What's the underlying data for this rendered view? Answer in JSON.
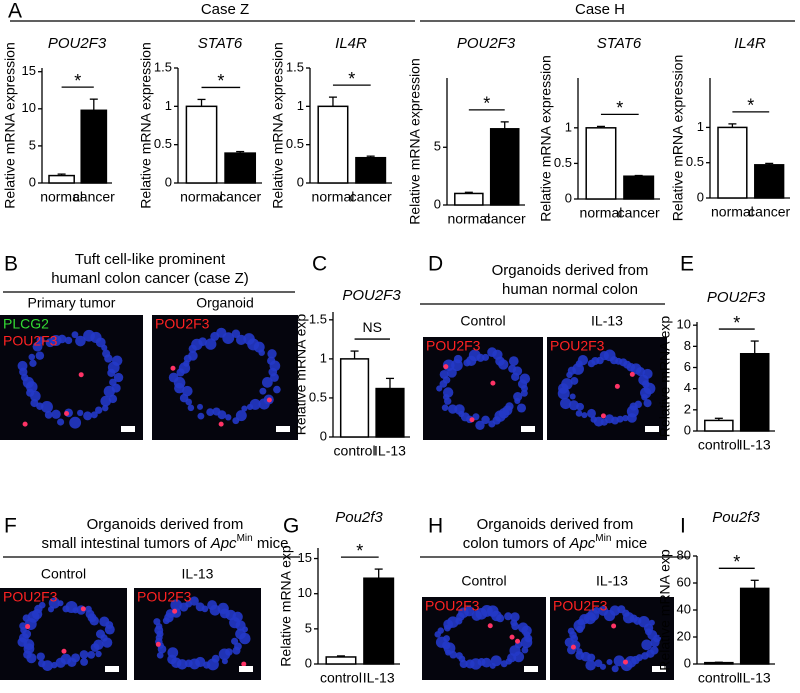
{
  "figure": {
    "panel_letters": [
      "A",
      "B",
      "C",
      "D",
      "E",
      "F",
      "G",
      "H",
      "I"
    ],
    "case_headers": [
      "Case Z",
      "Case H"
    ],
    "panel_b": {
      "title": [
        "Tuft cell-like prominent",
        "humanl colon cancer (case Z)"
      ],
      "images": [
        {
          "label": "Primary tumor",
          "stains": [
            {
              "name": "PLCG2",
              "color": "#33dd33"
            },
            {
              "name": "POU2F3",
              "color": "#ff2222"
            }
          ]
        },
        {
          "label": "Organoid",
          "stains": [
            {
              "name": "POU2F3",
              "color": "#ff2222"
            }
          ]
        }
      ]
    },
    "panel_d": {
      "title": [
        "Organoids derived from",
        "human normal colon"
      ],
      "images": [
        {
          "label": "Control",
          "stains": [
            {
              "name": "POU2F3",
              "color": "#ff2222"
            }
          ]
        },
        {
          "label": "IL-13",
          "stains": [
            {
              "name": "POU2F3",
              "color": "#ff2222"
            }
          ]
        }
      ]
    },
    "panel_f": {
      "title": [
        "Organoids derived from",
        [
          "small intestinal tumors of ",
          "Apc",
          "Min",
          " mice"
        ]
      ],
      "images": [
        {
          "label": "Control",
          "stains": [
            {
              "name": "POU2F3",
              "color": "#ff2222"
            }
          ]
        },
        {
          "label": "IL-13",
          "stains": [
            {
              "name": "POU2F3",
              "color": "#ff2222"
            }
          ]
        }
      ]
    },
    "panel_h": {
      "title": [
        "Organoids derived from",
        [
          "colon tumors of ",
          "Apc",
          "Min",
          " mice"
        ]
      ],
      "images": [
        {
          "label": "Control",
          "stains": [
            {
              "name": "POU2F3",
              "color": "#ff2222"
            }
          ]
        },
        {
          "label": "IL-13",
          "stains": [
            {
              "name": "POU2F3",
              "color": "#ff2222"
            }
          ]
        }
      ]
    }
  },
  "chart_data": [
    {
      "type": "bar",
      "title": "POU2F3",
      "y_label": "Relative mRNA expression",
      "categories": [
        "normal",
        "cancer"
      ],
      "values": [
        1.0,
        9.8
      ],
      "errors": [
        0.2,
        1.5
      ],
      "colors": [
        "#ffffff",
        "#000000"
      ],
      "ylim": [
        0,
        15.5
      ],
      "yticks": [
        0,
        5,
        10,
        15
      ],
      "annotation": "*"
    },
    {
      "type": "bar",
      "title": "STAT6",
      "y_label": "Relative mRNA expression",
      "categories": [
        "normal",
        "cancer"
      ],
      "values": [
        1.0,
        0.39
      ],
      "errors": [
        0.09,
        0.02
      ],
      "colors": [
        "#ffffff",
        "#000000"
      ],
      "ylim": [
        0,
        1.5
      ],
      "yticks": [
        0,
        0.5,
        1,
        1.5
      ],
      "annotation": "*"
    },
    {
      "type": "bar",
      "title": "IL4R",
      "y_label": "Relative mRNA expression",
      "categories": [
        "normal",
        "cancer"
      ],
      "values": [
        1.0,
        0.33
      ],
      "errors": [
        0.12,
        0.02
      ],
      "colors": [
        "#ffffff",
        "#000000"
      ],
      "ylim": [
        0,
        1.5
      ],
      "yticks": [
        0,
        0.5,
        1,
        1.5
      ],
      "annotation": "*"
    },
    {
      "type": "bar",
      "title": "POU2F3",
      "y_label": "Relative mRNA expression",
      "categories": [
        "normal",
        "cancer"
      ],
      "values": [
        1.0,
        6.6
      ],
      "errors": [
        0.1,
        0.6
      ],
      "colors": [
        "#ffffff",
        "#000000"
      ],
      "ylim": [
        0,
        11
      ],
      "yticks": [
        0,
        5
      ],
      "annotation": "*"
    },
    {
      "type": "bar",
      "title": "STAT6",
      "y_label": "Relative mRNA expression",
      "categories": [
        "normal",
        "cancer"
      ],
      "values": [
        1.0,
        0.32
      ],
      "errors": [
        0.02,
        0.01
      ],
      "colors": [
        "#ffffff",
        "#000000"
      ],
      "ylim": [
        0,
        1.7
      ],
      "yticks": [
        0,
        0.5,
        1
      ],
      "annotation": "*"
    },
    {
      "type": "bar",
      "title": "IL4R",
      "y_label": "Relative mRNA expression",
      "categories": [
        "normal",
        "cancer"
      ],
      "values": [
        1.0,
        0.47
      ],
      "errors": [
        0.05,
        0.02
      ],
      "colors": [
        "#ffffff",
        "#000000"
      ],
      "ylim": [
        0,
        1.7
      ],
      "yticks": [
        0,
        0.5,
        1
      ],
      "annotation": "*"
    },
    {
      "type": "bar",
      "title": "POU2F3",
      "y_label": "Relative mRNA exp",
      "categories": [
        "control",
        "IL-13"
      ],
      "values": [
        1.0,
        0.62
      ],
      "errors": [
        0.1,
        0.13
      ],
      "colors": [
        "#ffffff",
        "#000000"
      ],
      "ylim": [
        0,
        1.6
      ],
      "yticks": [
        0,
        0.5,
        1,
        1.5
      ],
      "annotation": "NS"
    },
    {
      "type": "bar",
      "title": "POU2F3",
      "y_label": "Relative mRNA exp",
      "categories": [
        "control",
        "IL-13"
      ],
      "values": [
        1.0,
        7.3
      ],
      "errors": [
        0.2,
        1.2
      ],
      "colors": [
        "#ffffff",
        "#000000"
      ],
      "ylim": [
        0,
        10.3
      ],
      "yticks": [
        0,
        2,
        4,
        6,
        8,
        10
      ],
      "annotation": "*"
    },
    {
      "type": "bar",
      "title": "Pou2f3",
      "y_label": "Relative mRNA exp",
      "categories": [
        "control",
        "IL-13"
      ],
      "values": [
        1.0,
        12.2
      ],
      "errors": [
        0.15,
        1.3
      ],
      "colors": [
        "#ffffff",
        "#000000"
      ],
      "ylim": [
        0,
        16.5
      ],
      "yticks": [
        0,
        5,
        10,
        15
      ],
      "annotation": "*"
    },
    {
      "type": "bar",
      "title": "Pou2f3",
      "y_label": "Relative mRNA exp",
      "categories": [
        "control",
        "IL-13"
      ],
      "values": [
        1.0,
        56
      ],
      "errors": [
        0.3,
        6
      ],
      "colors": [
        "#ffffff",
        "#000000"
      ],
      "ylim": [
        0,
        80
      ],
      "yticks": [
        0,
        20,
        40,
        60,
        80
      ],
      "annotation": "*"
    }
  ]
}
